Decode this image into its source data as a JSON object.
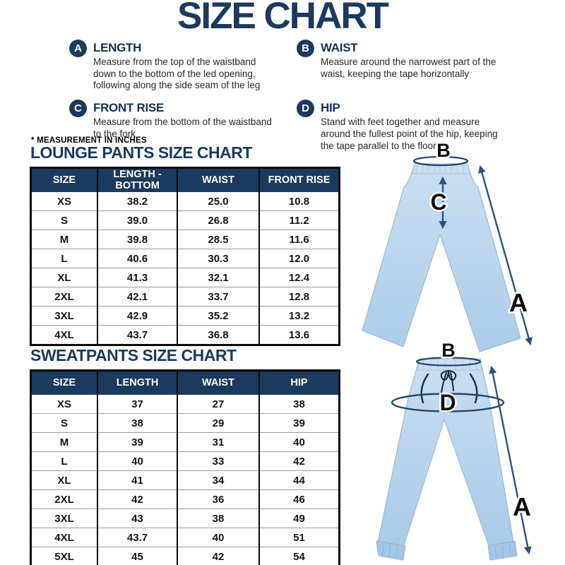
{
  "title": "SIZE CHART",
  "note": "* MEASUREMENT IN INCHES",
  "legend": {
    "items": [
      {
        "badge": "A",
        "name": "LENGTH",
        "desc": "Measure from the top of the waistband down to the bottom of the led opening, following along the side seam of the leg"
      },
      {
        "badge": "B",
        "name": "WAIST",
        "desc": "Measure around the narrowest part of the waist, keeping the tape horizontally"
      },
      {
        "badge": "C",
        "name": "FRONT RISE",
        "desc": "Measure from the bottom of the waistband to the fork"
      },
      {
        "badge": "D",
        "name": "HIP",
        "desc": "Stand with feet together and measure around the fullest point of the hip, keeping the tape parallel to the floor"
      }
    ]
  },
  "lounge_table": {
    "title": "LOUNGE PANTS SIZE CHART",
    "headers": [
      "SIZE",
      "LENGTH - BOTTOM",
      "WAIST",
      "FRONT RISE"
    ],
    "rows": [
      [
        "XS",
        "38.2",
        "25.0",
        "10.8"
      ],
      [
        "S",
        "39.0",
        "26.8",
        "11.2"
      ],
      [
        "M",
        "39.8",
        "28.5",
        "11.6"
      ],
      [
        "L",
        "40.6",
        "30.3",
        "12.0"
      ],
      [
        "XL",
        "41.3",
        "32.1",
        "12.4"
      ],
      [
        "2XL",
        "42.1",
        "33.7",
        "12.8"
      ],
      [
        "3XL",
        "42.9",
        "35.2",
        "13.2"
      ],
      [
        "4XL",
        "43.7",
        "36.8",
        "13.6"
      ]
    ]
  },
  "sweat_table": {
    "title": "SWEATPANTS SIZE CHART",
    "headers": [
      "SIZE",
      "LENGTH",
      "WAIST",
      "HIP"
    ],
    "rows": [
      [
        "XS",
        "37",
        "27",
        "38"
      ],
      [
        "S",
        "38",
        "29",
        "39"
      ],
      [
        "M",
        "39",
        "31",
        "40"
      ],
      [
        "L",
        "40",
        "33",
        "42"
      ],
      [
        "XL",
        "41",
        "34",
        "44"
      ],
      [
        "2XL",
        "42",
        "36",
        "46"
      ],
      [
        "3XL",
        "43",
        "38",
        "49"
      ],
      [
        "4XL",
        "43.7",
        "40",
        "51"
      ],
      [
        "5XL",
        "45",
        "42",
        "54"
      ]
    ]
  },
  "illustrations": {
    "lounge": {
      "waist_label": "B",
      "front_rise_label": "C",
      "length_label": "A"
    },
    "sweat": {
      "waist_label": "B",
      "hip_label": "D",
      "length_label": "A"
    }
  },
  "colors": {
    "navy": "#1b3a5c",
    "arrow_blue": "#2b5180",
    "pants_blue": "#b8d4ec"
  }
}
